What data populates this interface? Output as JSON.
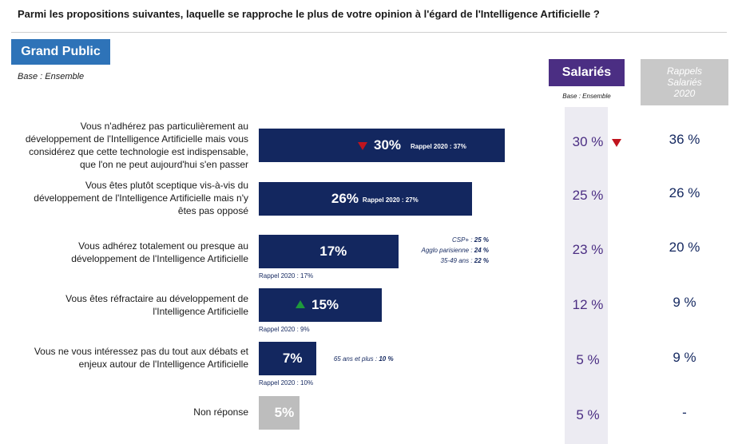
{
  "question": "Parmi les propositions suivantes, laquelle se rapproche le plus de votre opinion à l'égard de l'Intelligence Artificielle ?",
  "panel_label": "Grand Public",
  "base_label": "Base : Ensemble",
  "salaries_header": "Salariés",
  "salaries_base": "Base : Ensemble",
  "rappels_header": [
    "Rappels",
    "Salariés",
    "2020"
  ],
  "colors": {
    "bar": "#13275f",
    "bar_non_reponse": "#bdbdbd",
    "panel_badge": "#2e73b8",
    "salaries_badge": "#4b2e83",
    "rappels_badge": "#c8c8c8",
    "down": "#c0141e",
    "up": "#1e9a3c"
  },
  "chart_data": {
    "type": "bar",
    "orientation": "horizontal",
    "categories": [
      [
        "Vous n'adhérez pas particulièrement au",
        "développement de l'Intelligence Artificielle mais vous",
        "considérez que cette technologie est indispensable,",
        "que l'on ne peut aujourd'hui s'en passer"
      ],
      [
        "Vous êtes plutôt sceptique vis-à-vis du",
        "développement de l'Intelligence Artificielle mais n'y",
        "êtes pas opposé"
      ],
      [
        "Vous adhérez totalement ou presque au",
        "développement de l'Intelligence Artificielle"
      ],
      [
        "Vous êtes réfractaire au développement de",
        "l'Intelligence Artificielle"
      ],
      [
        "Vous ne vous intéressez pas du tout aux débats et",
        "enjeux autour de l'Intelligence Artificielle"
      ],
      [
        "Non réponse"
      ]
    ],
    "values": [
      30,
      26,
      17,
      15,
      7,
      5
    ],
    "value_labels": [
      "30%",
      "26%",
      "17%",
      "15%",
      "7%",
      "5%"
    ],
    "trend": [
      "down",
      "",
      "",
      "up",
      "",
      ""
    ],
    "rappel_2020": [
      "Rappel 2020 : 37%",
      "Rappel 2020 : 27%",
      "Rappel 2020 : 17%",
      "Rappel 2020 : 9%",
      "Rappel 2020 : 10%",
      ""
    ],
    "rappel_position": [
      "inside",
      "inside",
      "below",
      "below",
      "below",
      ""
    ],
    "notes": [
      [],
      [],
      [
        [
          "CSP+ : ",
          "25 %"
        ],
        [
          "Agglo parisienne : ",
          "24 %"
        ],
        [
          "35-49 ans : ",
          "22 %"
        ]
      ],
      [],
      [
        [
          "65 ans et plus : ",
          "10 %"
        ]
      ],
      []
    ],
    "salaries": [
      "30 %",
      "25 %",
      "23 %",
      "12 %",
      "5 %",
      "5 %"
    ],
    "salaries_trend": [
      "down",
      "",
      "",
      "",
      "",
      ""
    ],
    "rappels_salaries_2020": [
      "36 %",
      "26 %",
      "20 %",
      "9 %",
      "9 %",
      "-"
    ],
    "xlim": [
      0,
      30
    ]
  }
}
